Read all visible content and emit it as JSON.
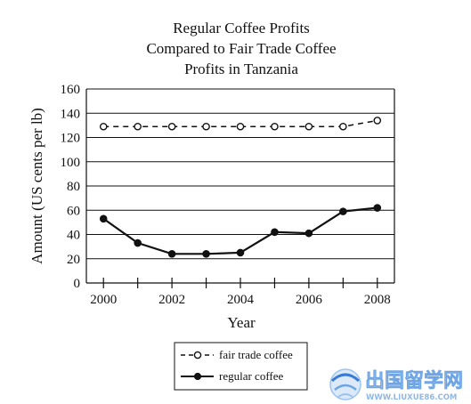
{
  "chart_data": {
    "type": "line",
    "title_lines": [
      "Regular Coffee Profits",
      "Compared to Fair Trade Coffee",
      "Profits in Tanzania"
    ],
    "xlabel": "Year",
    "ylabel": "Amount (US cents per lb)",
    "x": [
      2000,
      2001,
      2002,
      2003,
      2004,
      2005,
      2006,
      2007,
      2008
    ],
    "x_tick_labels": [
      "2000",
      "2002",
      "2004",
      "2006",
      "2008"
    ],
    "y_tick_labels": [
      "0",
      "20",
      "40",
      "60",
      "80",
      "100",
      "120",
      "140",
      "160"
    ],
    "xlim": [
      1999.5,
      2008.5
    ],
    "ylim": [
      0,
      160
    ],
    "grid": "horizontal",
    "legend_position": "bottom",
    "series": [
      {
        "name": "fair trade coffee",
        "style": "dashed",
        "marker": "open-circle",
        "values": [
          129,
          129,
          129,
          129,
          129,
          129,
          129,
          129,
          134
        ]
      },
      {
        "name": "regular coffee",
        "style": "solid",
        "marker": "filled-circle",
        "values": [
          53,
          33,
          24,
          24,
          25,
          42,
          41,
          59,
          62
        ]
      }
    ]
  },
  "watermark": {
    "text_cn": "出国留学网",
    "url": "WWW.LIUXUE86.COM"
  },
  "colors": {
    "line": "#111111",
    "watermark_blue": "#3a7bd5",
    "watermark_light": "#9cc3ef"
  }
}
